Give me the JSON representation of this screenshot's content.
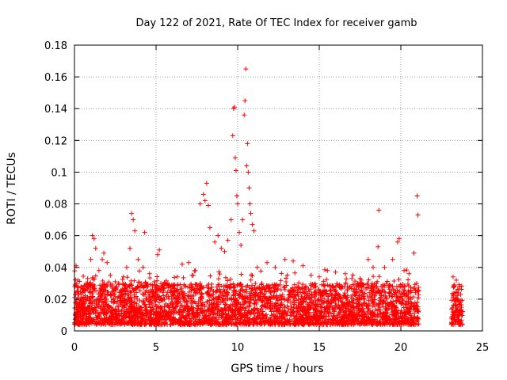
{
  "chart_data": {
    "type": "scatter",
    "title": "Day 122 of 2021, Rate Of TEC Index for receiver gamb",
    "xlabel": "GPS time / hours",
    "ylabel": "ROTI / TECUs",
    "xlim": [
      0,
      25
    ],
    "ylim": [
      0,
      0.18
    ],
    "xticks": [
      "0",
      "5",
      "10",
      "15",
      "20",
      "25"
    ],
    "yticks": [
      "0",
      "0.02",
      "0.04",
      "0.06",
      "0.08",
      "0.1",
      "0.12",
      "0.14",
      "0.16",
      "0.18"
    ],
    "grid": true,
    "marker": "plus",
    "color": "#ff0000",
    "series": [
      {
        "points": [
          [
            0.1,
            0.041
          ],
          [
            0.2,
            0.032
          ],
          [
            0.4,
            0.028
          ],
          [
            0.6,
            0.025
          ],
          [
            0.8,
            0.03
          ],
          [
            1.0,
            0.045
          ],
          [
            1.1,
            0.06
          ],
          [
            1.2,
            0.058
          ],
          [
            1.3,
            0.052
          ],
          [
            1.5,
            0.038
          ],
          [
            1.7,
            0.045
          ],
          [
            1.8,
            0.049
          ],
          [
            2.0,
            0.043
          ],
          [
            2.2,
            0.035
          ],
          [
            2.5,
            0.031
          ],
          [
            2.7,
            0.03
          ],
          [
            3.0,
            0.034
          ],
          [
            3.2,
            0.04
          ],
          [
            3.4,
            0.052
          ],
          [
            3.5,
            0.074
          ],
          [
            3.6,
            0.07
          ],
          [
            3.7,
            0.063
          ],
          [
            3.9,
            0.045
          ],
          [
            4.2,
            0.04
          ],
          [
            4.3,
            0.062
          ],
          [
            4.6,
            0.036
          ],
          [
            4.9,
            0.031
          ],
          [
            5.1,
            0.048
          ],
          [
            5.2,
            0.051
          ],
          [
            5.5,
            0.03
          ],
          [
            6.0,
            0.028
          ],
          [
            6.3,
            0.034
          ],
          [
            6.6,
            0.042
          ],
          [
            7.0,
            0.043
          ],
          [
            7.4,
            0.038
          ],
          [
            7.7,
            0.08
          ],
          [
            7.9,
            0.086
          ],
          [
            8.0,
            0.082
          ],
          [
            8.1,
            0.093
          ],
          [
            8.2,
            0.079
          ],
          [
            8.3,
            0.065
          ],
          [
            8.6,
            0.056
          ],
          [
            8.8,
            0.06
          ],
          [
            9.0,
            0.052
          ],
          [
            9.2,
            0.05
          ],
          [
            9.4,
            0.057
          ],
          [
            9.6,
            0.07
          ],
          [
            9.7,
            0.123
          ],
          [
            9.75,
            0.14
          ],
          [
            9.8,
            0.141
          ],
          [
            9.85,
            0.109
          ],
          [
            9.9,
            0.101
          ],
          [
            9.95,
            0.085
          ],
          [
            10.0,
            0.08
          ],
          [
            10.1,
            0.062
          ],
          [
            10.2,
            0.054
          ],
          [
            10.3,
            0.07
          ],
          [
            10.4,
            0.136
          ],
          [
            10.45,
            0.145
          ],
          [
            10.5,
            0.165
          ],
          [
            10.55,
            0.104
          ],
          [
            10.6,
            0.118
          ],
          [
            10.65,
            0.1
          ],
          [
            10.7,
            0.09
          ],
          [
            10.75,
            0.08
          ],
          [
            10.8,
            0.074
          ],
          [
            10.9,
            0.067
          ],
          [
            11.0,
            0.063
          ],
          [
            11.2,
            0.04
          ],
          [
            11.8,
            0.043
          ],
          [
            12.3,
            0.04
          ],
          [
            12.9,
            0.045
          ],
          [
            13.4,
            0.044
          ],
          [
            14.0,
            0.041
          ],
          [
            14.5,
            0.035
          ],
          [
            15.0,
            0.034
          ],
          [
            15.5,
            0.038
          ],
          [
            16.0,
            0.037
          ],
          [
            16.6,
            0.036
          ],
          [
            17.0,
            0.033
          ],
          [
            17.5,
            0.033
          ],
          [
            18.0,
            0.045
          ],
          [
            18.3,
            0.04
          ],
          [
            18.6,
            0.053
          ],
          [
            18.65,
            0.076
          ],
          [
            19.0,
            0.04
          ],
          [
            19.5,
            0.045
          ],
          [
            19.8,
            0.056
          ],
          [
            19.9,
            0.058
          ],
          [
            20.2,
            0.038
          ],
          [
            20.5,
            0.036
          ],
          [
            20.8,
            0.049
          ],
          [
            21.0,
            0.085
          ],
          [
            21.05,
            0.073
          ],
          [
            23.2,
            0.034
          ],
          [
            23.4,
            0.032
          ],
          [
            23.6,
            0.028
          ],
          [
            0.3,
            0.018
          ],
          [
            0.9,
            0.015
          ],
          [
            1.4,
            0.02
          ],
          [
            2.1,
            0.016
          ],
          [
            2.8,
            0.021
          ],
          [
            3.3,
            0.014
          ],
          [
            4.0,
            0.019
          ],
          [
            4.8,
            0.015
          ],
          [
            5.6,
            0.017
          ],
          [
            6.2,
            0.02
          ],
          [
            6.9,
            0.016
          ],
          [
            7.3,
            0.022
          ],
          [
            8.5,
            0.025
          ],
          [
            9.1,
            0.022
          ],
          [
            9.5,
            0.028
          ],
          [
            10.2,
            0.026
          ],
          [
            11.1,
            0.022
          ],
          [
            11.5,
            0.018
          ],
          [
            12.0,
            0.02
          ],
          [
            12.6,
            0.016
          ],
          [
            13.1,
            0.019
          ],
          [
            13.7,
            0.015
          ],
          [
            14.2,
            0.02
          ],
          [
            14.8,
            0.016
          ],
          [
            15.3,
            0.018
          ],
          [
            15.9,
            0.014
          ],
          [
            16.3,
            0.019
          ],
          [
            16.9,
            0.016
          ],
          [
            17.3,
            0.02
          ],
          [
            17.8,
            0.017
          ],
          [
            18.2,
            0.021
          ],
          [
            18.9,
            0.018
          ],
          [
            19.3,
            0.022
          ],
          [
            19.7,
            0.019
          ],
          [
            20.1,
            0.02
          ],
          [
            20.6,
            0.016
          ],
          [
            20.9,
            0.014
          ],
          [
            23.3,
            0.012
          ],
          [
            23.5,
            0.015
          ],
          [
            23.7,
            0.01
          ]
        ]
      }
    ]
  }
}
